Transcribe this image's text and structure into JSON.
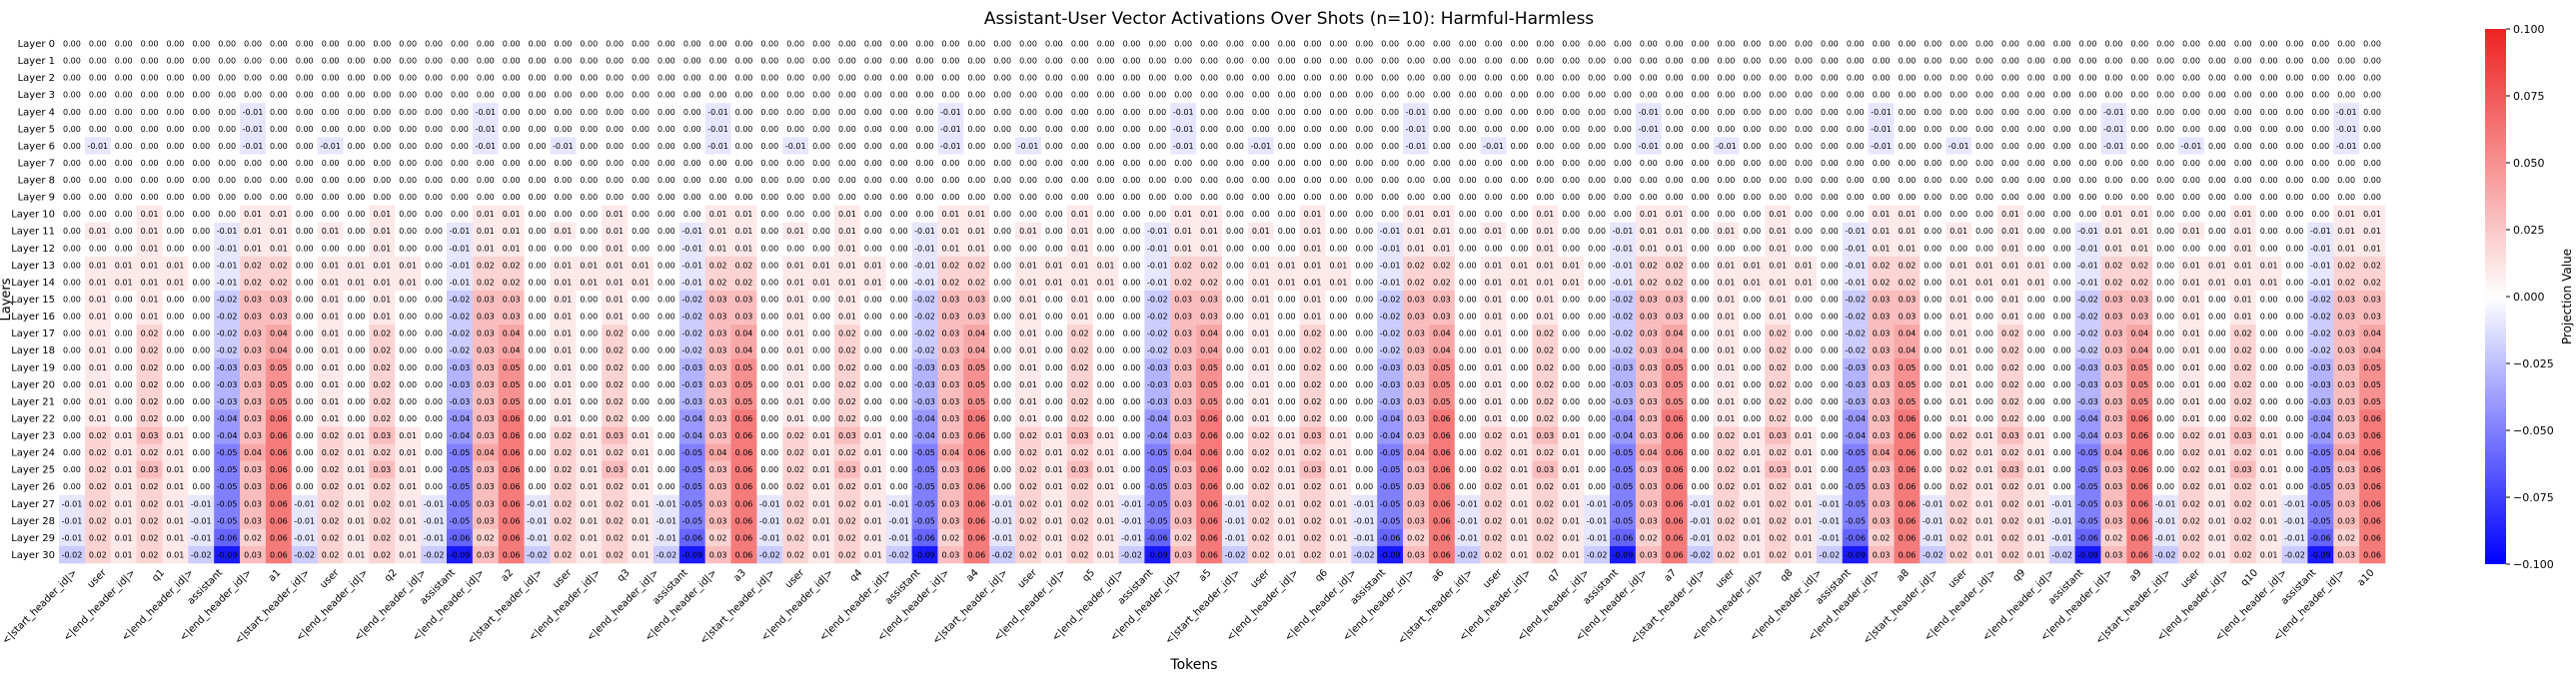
{
  "chart_data": {
    "type": "heatmap",
    "title": "Assistant-User Vector Activations Over Shots (n=10): Harmful-Harmless",
    "xlabel": "Tokens",
    "ylabel": "Layers",
    "colorbar_label": "Projection Value",
    "colorbar_ticks": [
      "0.100",
      "0.075",
      "0.050",
      "0.025",
      "0.000",
      "−0.025",
      "−0.050",
      "−0.075",
      "−0.100"
    ],
    "value_range": [
      -0.1,
      0.1
    ],
    "colors": {
      "low": "#0000ff",
      "mid": "#ffffff",
      "high": "#ee2222"
    },
    "y_categories": [
      "Layer 0",
      "Layer 1",
      "Layer 2",
      "Layer 3",
      "Layer 4",
      "Layer 5",
      "Layer 6",
      "Layer 7",
      "Layer 8",
      "Layer 9",
      "Layer 10",
      "Layer 11",
      "Layer 12",
      "Layer 13",
      "Layer 14",
      "Layer 15",
      "Layer 16",
      "Layer 17",
      "Layer 18",
      "Layer 19",
      "Layer 20",
      "Layer 21",
      "Layer 22",
      "Layer 23",
      "Layer 24",
      "Layer 25",
      "Layer 26",
      "Layer 27",
      "Layer 28",
      "Layer 29",
      "Layer 30"
    ],
    "x_categories": [
      "<|start_header_id|>",
      "user",
      "<|end_header_id|>",
      "q1",
      "<|end_header_id|>",
      "<|start_header_id|>",
      "assistant",
      "<|end_header_id|>",
      "a1",
      "<|start_header_id|>",
      "user",
      "<|end_header_id|>",
      "q2",
      "<|end_header_id|>",
      "<|start_header_id|>",
      "assistant",
      "<|end_header_id|>",
      "a2",
      "<|start_header_id|>",
      "user",
      "<|end_header_id|>",
      "q3",
      "<|end_header_id|>",
      "<|start_header_id|>",
      "assistant",
      "<|end_header_id|>",
      "a3",
      "<|start_header_id|>",
      "user",
      "<|end_header_id|>",
      "q4",
      "<|end_header_id|>",
      "<|start_header_id|>",
      "assistant",
      "<|end_header_id|>",
      "a4",
      "<|start_header_id|>",
      "user",
      "<|end_header_id|>",
      "q5",
      "<|end_header_id|>",
      "<|start_header_id|>",
      "assistant",
      "<|end_header_id|>",
      "a5",
      "<|start_header_id|>",
      "user",
      "<|end_header_id|>",
      "q6",
      "<|end_header_id|>",
      "<|start_header_id|>",
      "assistant",
      "<|end_header_id|>",
      "a6",
      "<|start_header_id|>",
      "user",
      "<|end_header_id|>",
      "q7",
      "<|end_header_id|>",
      "<|start_header_id|>",
      "assistant",
      "<|end_header_id|>",
      "a7",
      "<|start_header_id|>",
      "user",
      "<|end_header_id|>",
      "q8",
      "<|end_header_id|>",
      "<|start_header_id|>",
      "assistant",
      "<|end_header_id|>",
      "a8",
      "<|start_header_id|>",
      "user",
      "<|end_header_id|>",
      "q9",
      "<|end_header_id|>",
      "<|start_header_id|>",
      "assistant",
      "<|end_header_id|>",
      "a9",
      "<|start_header_id|>",
      "user",
      "<|end_header_id|>",
      "q10",
      "<|end_header_id|>",
      "<|start_header_id|>",
      "assistant",
      "<|end_header_id|>",
      "a10"
    ],
    "x_tick_labels_shown": [
      "<|start_header_id|>",
      "user",
      "<|end_header_id|>",
      "q1",
      "<|end_header_id|>",
      "assistant",
      "<|end_header_id|>",
      "a1",
      "<|start_header_id|>",
      "user",
      "<|end_header_id|>",
      "q2",
      "<|end_header_id|>",
      "assistant",
      "<|end_header_id|>",
      "a2",
      "<|start_header_id|>",
      "user",
      "<|end_header_id|>",
      "q3",
      "<|end_header_id|>",
      "assistant",
      "<|end_header_id|>",
      "a3",
      "<|start_header_id|>",
      "user",
      "<|end_header_id|>",
      "q4",
      "<|end_header_id|>",
      "assistant",
      "<|end_header_id|>",
      "a4",
      "<|start_header_id|>",
      "user",
      "<|end_header_id|>",
      "q5",
      "<|end_header_id|>",
      "assistant",
      "<|end_header_id|>",
      "a5",
      "<|start_header_id|>",
      "user",
      "<|end_header_id|>",
      "q6",
      "<|end_header_id|>",
      "assistant",
      "<|end_header_id|>",
      "a6",
      "<|start_header_id|>",
      "user",
      "<|end_header_id|>",
      "q7",
      "<|end_header_id|>",
      "assistant",
      "<|end_header_id|>",
      "a7",
      "<|start_header_id|>",
      "user",
      "<|end_header_id|>",
      "q8",
      "<|end_header_id|>",
      "assistant",
      "<|end_header_id|>",
      "a8",
      "<|start_header_id|>",
      "user",
      "<|end_header_id|>",
      "q9",
      "<|end_header_id|>",
      "assistant",
      "<|end_header_id|>",
      "a9",
      "<|start_header_id|>",
      "user",
      "<|end_header_id|>",
      "q10",
      "<|end_header_id|>",
      "assistant",
      "<|end_header_id|>",
      "a10"
    ],
    "matrix_profiles": {
      "user": [
        0,
        0,
        0,
        0,
        0,
        0,
        -0.01,
        0,
        0,
        0,
        0,
        0.01,
        0,
        0.01,
        0.01,
        0.01,
        0.01,
        0.01,
        0.01,
        0.01,
        0.01,
        0.01,
        0.01,
        0.02,
        0.02,
        0.02,
        0.02,
        0.02,
        0.02,
        0.02,
        0.02
      ],
      "end_header": [
        0,
        0,
        0,
        0,
        0,
        0,
        0,
        0,
        0,
        0,
        0,
        0,
        0,
        0.01,
        0.01,
        0,
        0,
        0,
        0,
        0,
        0,
        0,
        0,
        0.01,
        0.01,
        0.01,
        0.01,
        0.01,
        0.01,
        0.01,
        0.01
      ],
      "query": [
        0,
        0,
        0,
        0,
        0,
        0,
        0,
        0,
        0,
        0,
        0.01,
        0.01,
        0.01,
        0.01,
        0.01,
        0.01,
        0.01,
        0.02,
        0.02,
        0.02,
        0.02,
        0.02,
        0.02,
        0.03,
        0.02,
        0.03,
        0.02,
        0.02,
        0.02,
        0.02,
        0.02
      ],
      "start_header": [
        0,
        0,
        0,
        0,
        0,
        0,
        0,
        0,
        0,
        0,
        0,
        0,
        0,
        0,
        0,
        0,
        0,
        0,
        0,
        0,
        0,
        0,
        0,
        0,
        0,
        0,
        0,
        -0.01,
        -0.01,
        -0.01,
        -0.02
      ],
      "assistant": [
        0,
        0,
        0,
        0,
        0,
        0,
        0,
        0,
        0,
        0,
        0,
        -0.01,
        -0.01,
        -0.01,
        -0.01,
        -0.02,
        -0.02,
        -0.02,
        -0.02,
        -0.03,
        -0.03,
        -0.03,
        -0.04,
        -0.04,
        -0.05,
        -0.05,
        -0.05,
        -0.05,
        -0.05,
        -0.06,
        -0.09
      ],
      "answer_end_header": [
        0,
        0,
        0,
        0,
        -0.01,
        -0.01,
        -0.01,
        0,
        0,
        0,
        0.01,
        0.01,
        0.01,
        0.02,
        0.02,
        0.03,
        0.03,
        0.03,
        0.03,
        0.03,
        0.03,
        0.03,
        0.03,
        0.03,
        0.04,
        0.03,
        0.03,
        0.03,
        0.03,
        0.02,
        0.03
      ],
      "answer": [
        0,
        0,
        0,
        0,
        0,
        0,
        0,
        0,
        0,
        0,
        0.01,
        0.01,
        0.01,
        0.02,
        0.02,
        0.03,
        0.03,
        0.04,
        0.04,
        0.05,
        0.05,
        0.05,
        0.06,
        0.06,
        0.06,
        0.06,
        0.06,
        0.06,
        0.06,
        0.06,
        0.06
      ]
    }
  }
}
